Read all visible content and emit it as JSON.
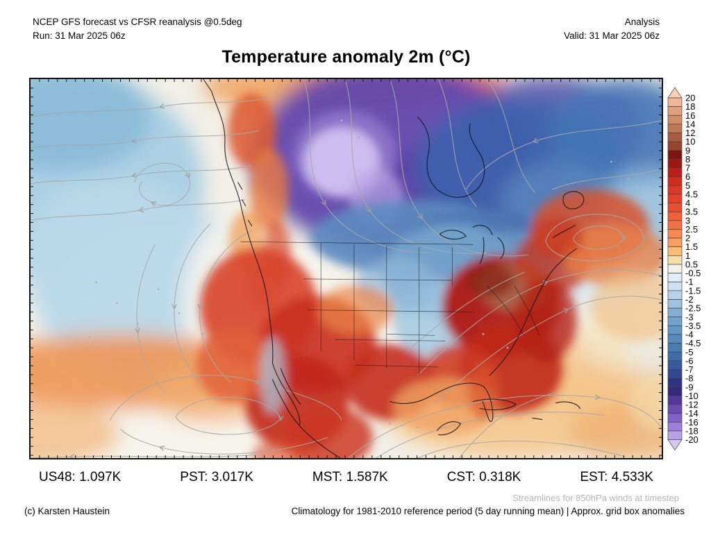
{
  "header": {
    "model_line": "NCEP GFS forecast vs CFSR reanalysis @0.5deg",
    "run_line": "Run: 31 Mar 2025 06z",
    "mode": "Analysis",
    "valid_line": "Valid: 31 Mar 2025 06z"
  },
  "title": "Temperature anomaly 2m (°C)",
  "stats": [
    {
      "text": "US48: 1.097K"
    },
    {
      "text": "PST: 3.017K"
    },
    {
      "text": "MST: 1.587K"
    },
    {
      "text": "CST: 0.318K"
    },
    {
      "text": "EST: 4.533K"
    }
  ],
  "notes": {
    "streamlines": "Streamlines for 850hPa winds at timestep",
    "copyright": "(c) Karsten Haustein",
    "climatology": "Climatology for 1981-2010 reference period (5 day running mean) | Approx. grid box anomalies"
  },
  "colorbar": {
    "unit": "°C",
    "levels": [
      20,
      18,
      16,
      14,
      12,
      10,
      9,
      8,
      7,
      6,
      5,
      4.5,
      4,
      3.5,
      3,
      2.5,
      2,
      1.5,
      1,
      0.5,
      -0.5,
      -1,
      -1.5,
      -2,
      -2.5,
      -3,
      -3.5,
      -4,
      -4.5,
      -5,
      -6,
      -7,
      -8,
      -9,
      -10,
      -12,
      -14,
      -16,
      -18,
      -20
    ],
    "colors": [
      "#f8cfb8",
      "#eeb598",
      "#e0a080",
      "#d18c69",
      "#bf7854",
      "#a65c3e",
      "#96442d",
      "#7f1511",
      "#9d1710",
      "#bc1f19",
      "#d22b20",
      "#dd3526",
      "#e63f2a",
      "#ec4d31",
      "#f05e3a",
      "#f37044",
      "#f78850",
      "#faa05e",
      "#fcbd74",
      "#f2e0a6",
      "#f1f1ec",
      "#e0ecf6",
      "#cde1f1",
      "#b6d4e9",
      "#9dc3df",
      "#84afd4",
      "#72a2ca",
      "#6496c3",
      "#5789ba",
      "#497bb1",
      "#3f6ca6",
      "#385a9c",
      "#314790",
      "#2d3484",
      "#35297c",
      "#53379d",
      "#6b4ab2",
      "#8262c4",
      "#9c80d5",
      "#b8a1e4",
      "#d6c8f1"
    ]
  }
}
